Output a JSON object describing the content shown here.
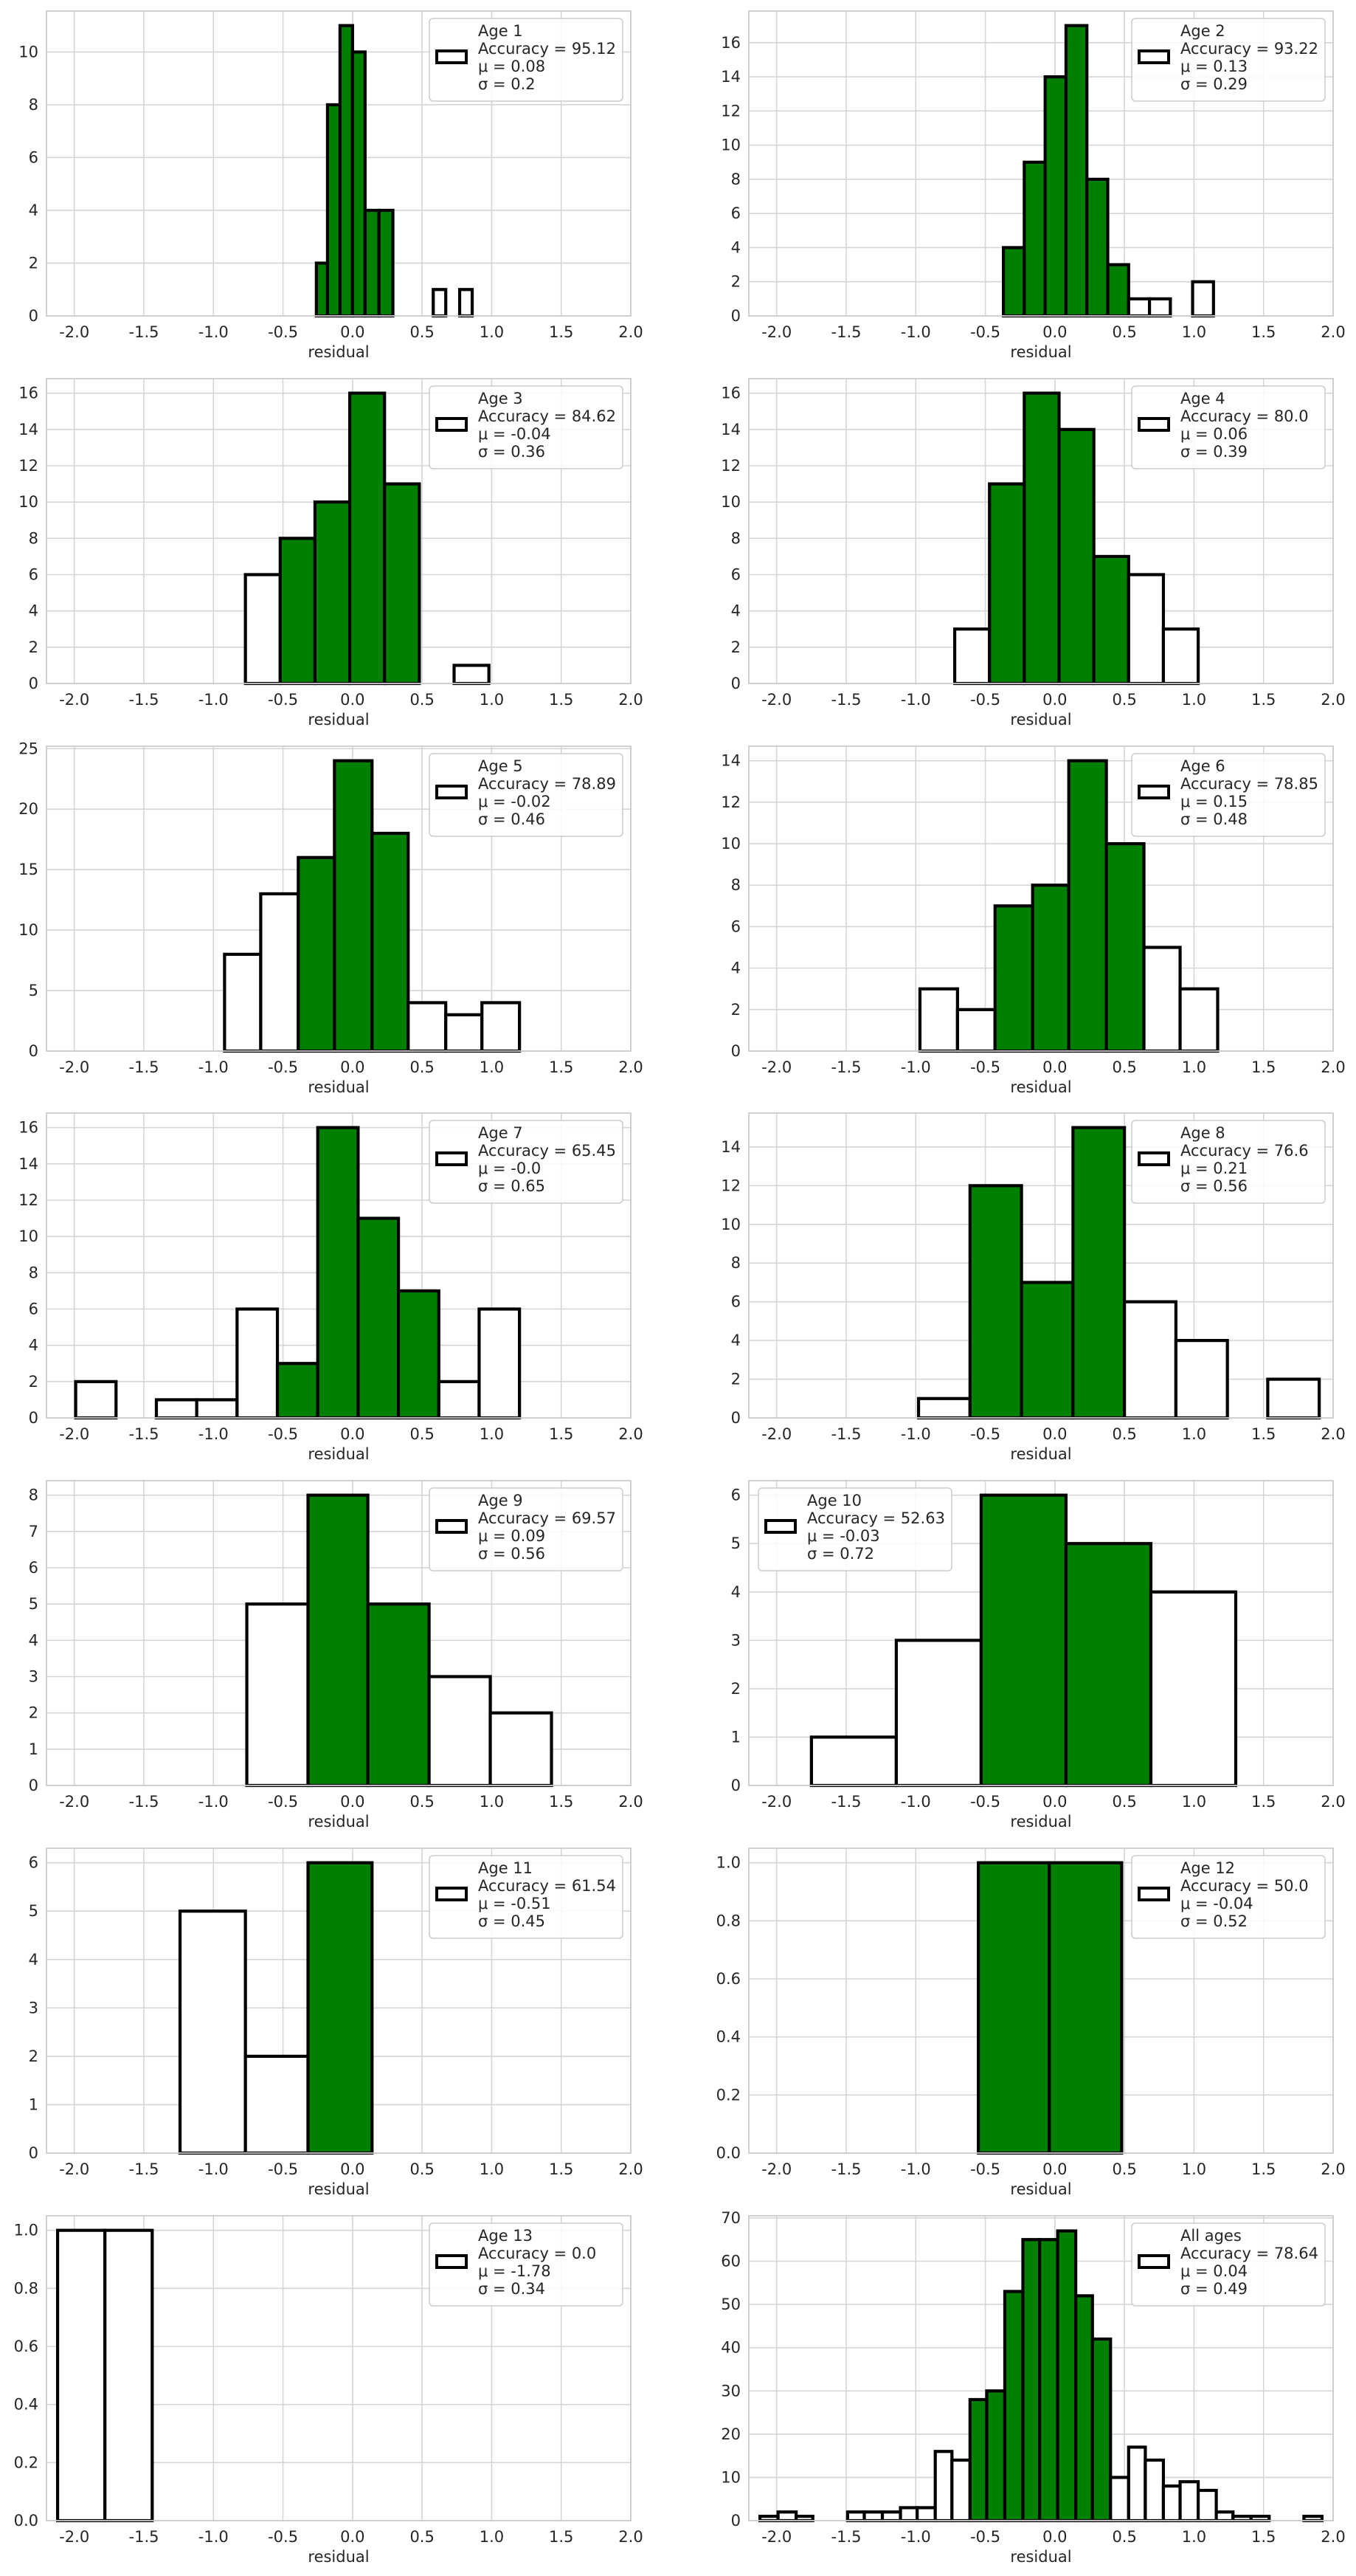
{
  "figure": {
    "xlabel": "residual"
  },
  "colors": {
    "in_range_fill": "#008000",
    "out_range_fill": "#ffffff",
    "edge": "#000000",
    "grid": "#d5d5d5",
    "axes_edge": "#cccccc"
  },
  "chart_data": [
    {
      "type": "bar",
      "legend": [
        "Age 1",
        "Accuracy = 95.12",
        "μ = 0.08",
        "σ = 0.2"
      ],
      "legend_loc": "top-right",
      "xlabel": "residual",
      "xlim": [
        -2.2,
        2.0
      ],
      "ylim": [
        0,
        11.55
      ],
      "yticks": [
        0,
        2,
        4,
        6,
        8,
        10
      ],
      "bins": [
        {
          "x0": -0.26,
          "x1": -0.18,
          "value": 2,
          "in_range": true
        },
        {
          "x0": -0.18,
          "x1": -0.09,
          "value": 8,
          "in_range": true
        },
        {
          "x0": -0.09,
          "x1": 0.0,
          "value": 11,
          "in_range": true
        },
        {
          "x0": 0.0,
          "x1": 0.09,
          "value": 10,
          "in_range": true
        },
        {
          "x0": 0.09,
          "x1": 0.19,
          "value": 4,
          "in_range": true
        },
        {
          "x0": 0.19,
          "x1": 0.29,
          "value": 4,
          "in_range": true
        },
        {
          "x0": 0.58,
          "x1": 0.67,
          "value": 1,
          "in_range": false
        },
        {
          "x0": 0.77,
          "x1": 0.86,
          "value": 1,
          "in_range": false
        }
      ]
    },
    {
      "type": "bar",
      "legend": [
        "Age 2",
        "Accuracy = 93.22",
        "μ = 0.13",
        "σ = 0.29"
      ],
      "legend_loc": "top-right",
      "xlabel": "residual",
      "xlim": [
        -2.2,
        2.0
      ],
      "ylim": [
        0,
        17.85
      ],
      "yticks": [
        0,
        2,
        4,
        6,
        8,
        10,
        12,
        14,
        16
      ],
      "bins": [
        {
          "x0": -0.37,
          "x1": -0.22,
          "value": 4,
          "in_range": true
        },
        {
          "x0": -0.22,
          "x1": -0.07,
          "value": 9,
          "in_range": true
        },
        {
          "x0": -0.07,
          "x1": 0.08,
          "value": 14,
          "in_range": true
        },
        {
          "x0": 0.08,
          "x1": 0.23,
          "value": 17,
          "in_range": true
        },
        {
          "x0": 0.23,
          "x1": 0.38,
          "value": 8,
          "in_range": true
        },
        {
          "x0": 0.38,
          "x1": 0.53,
          "value": 3,
          "in_range": true
        },
        {
          "x0": 0.53,
          "x1": 0.68,
          "value": 1,
          "in_range": false
        },
        {
          "x0": 0.68,
          "x1": 0.83,
          "value": 1,
          "in_range": false
        },
        {
          "x0": 0.99,
          "x1": 1.14,
          "value": 2,
          "in_range": false
        }
      ]
    },
    {
      "type": "bar",
      "legend": [
        "Age 3",
        "Accuracy = 84.62",
        "μ = -0.04",
        "σ = 0.36"
      ],
      "legend_loc": "top-right",
      "xlabel": "residual",
      "xlim": [
        -2.2,
        2.0
      ],
      "ylim": [
        0,
        16.8
      ],
      "yticks": [
        0,
        2,
        4,
        6,
        8,
        10,
        12,
        14,
        16
      ],
      "bins": [
        {
          "x0": -0.77,
          "x1": -0.52,
          "value": 6,
          "in_range": false
        },
        {
          "x0": -0.52,
          "x1": -0.27,
          "value": 8,
          "in_range": true
        },
        {
          "x0": -0.27,
          "x1": -0.02,
          "value": 10,
          "in_range": true
        },
        {
          "x0": -0.02,
          "x1": 0.23,
          "value": 16,
          "in_range": true
        },
        {
          "x0": 0.23,
          "x1": 0.48,
          "value": 11,
          "in_range": true
        },
        {
          "x0": 0.73,
          "x1": 0.98,
          "value": 1,
          "in_range": false
        }
      ]
    },
    {
      "type": "bar",
      "legend": [
        "Age 4",
        "Accuracy = 80.0",
        "μ = 0.06",
        "σ = 0.39"
      ],
      "legend_loc": "top-right",
      "xlabel": "residual",
      "xlim": [
        -2.2,
        2.0
      ],
      "ylim": [
        0,
        16.8
      ],
      "yticks": [
        0,
        2,
        4,
        6,
        8,
        10,
        12,
        14,
        16
      ],
      "bins": [
        {
          "x0": -0.72,
          "x1": -0.47,
          "value": 3,
          "in_range": false
        },
        {
          "x0": -0.47,
          "x1": -0.22,
          "value": 11,
          "in_range": true
        },
        {
          "x0": -0.22,
          "x1": 0.03,
          "value": 16,
          "in_range": true
        },
        {
          "x0": 0.03,
          "x1": 0.28,
          "value": 14,
          "in_range": true
        },
        {
          "x0": 0.28,
          "x1": 0.53,
          "value": 7,
          "in_range": true
        },
        {
          "x0": 0.53,
          "x1": 0.78,
          "value": 6,
          "in_range": false
        },
        {
          "x0": 0.78,
          "x1": 1.03,
          "value": 3,
          "in_range": false
        }
      ]
    },
    {
      "type": "bar",
      "legend": [
        "Age 5",
        "Accuracy = 78.89",
        "μ = -0.02",
        "σ = 0.46"
      ],
      "legend_loc": "top-right",
      "xlabel": "residual",
      "xlim": [
        -2.2,
        2.0
      ],
      "ylim": [
        0,
        25.2
      ],
      "yticks": [
        0,
        5,
        10,
        15,
        20,
        25
      ],
      "bins": [
        {
          "x0": -0.92,
          "x1": -0.66,
          "value": 8,
          "in_range": false
        },
        {
          "x0": -0.66,
          "x1": -0.39,
          "value": 13,
          "in_range": false
        },
        {
          "x0": -0.39,
          "x1": -0.13,
          "value": 16,
          "in_range": true
        },
        {
          "x0": -0.13,
          "x1": 0.14,
          "value": 24,
          "in_range": true
        },
        {
          "x0": 0.14,
          "x1": 0.4,
          "value": 18,
          "in_range": true
        },
        {
          "x0": 0.4,
          "x1": 0.67,
          "value": 4,
          "in_range": false
        },
        {
          "x0": 0.67,
          "x1": 0.93,
          "value": 3,
          "in_range": false
        },
        {
          "x0": 0.93,
          "x1": 1.2,
          "value": 4,
          "in_range": false
        }
      ]
    },
    {
      "type": "bar",
      "legend": [
        "Age 6",
        "Accuracy = 78.85",
        "μ = 0.15",
        "σ = 0.48"
      ],
      "legend_loc": "top-right",
      "xlabel": "residual",
      "xlim": [
        -2.2,
        2.0
      ],
      "ylim": [
        0,
        14.7
      ],
      "yticks": [
        0,
        2,
        4,
        6,
        8,
        10,
        12,
        14
      ],
      "bins": [
        {
          "x0": -0.97,
          "x1": -0.7,
          "value": 3,
          "in_range": false
        },
        {
          "x0": -0.7,
          "x1": -0.43,
          "value": 2,
          "in_range": false
        },
        {
          "x0": -0.43,
          "x1": -0.16,
          "value": 7,
          "in_range": true
        },
        {
          "x0": -0.16,
          "x1": 0.1,
          "value": 8,
          "in_range": true
        },
        {
          "x0": 0.1,
          "x1": 0.37,
          "value": 14,
          "in_range": true
        },
        {
          "x0": 0.37,
          "x1": 0.64,
          "value": 10,
          "in_range": true
        },
        {
          "x0": 0.64,
          "x1": 0.9,
          "value": 5,
          "in_range": false
        },
        {
          "x0": 0.9,
          "x1": 1.17,
          "value": 3,
          "in_range": false
        }
      ]
    },
    {
      "type": "bar",
      "legend": [
        "Age 7",
        "Accuracy = 65.45",
        "μ = -0.0",
        "σ = 0.65"
      ],
      "legend_loc": "top-right",
      "xlabel": "residual",
      "xlim": [
        -2.2,
        2.0
      ],
      "ylim": [
        0,
        16.8
      ],
      "yticks": [
        0,
        2,
        4,
        6,
        8,
        10,
        12,
        14,
        16
      ],
      "bins": [
        {
          "x0": -1.99,
          "x1": -1.7,
          "value": 2,
          "in_range": false
        },
        {
          "x0": -1.41,
          "x1": -1.12,
          "value": 1,
          "in_range": false
        },
        {
          "x0": -1.12,
          "x1": -0.83,
          "value": 1,
          "in_range": false
        },
        {
          "x0": -0.83,
          "x1": -0.54,
          "value": 6,
          "in_range": false
        },
        {
          "x0": -0.54,
          "x1": -0.25,
          "value": 3,
          "in_range": true
        },
        {
          "x0": -0.25,
          "x1": 0.04,
          "value": 16,
          "in_range": true
        },
        {
          "x0": 0.04,
          "x1": 0.33,
          "value": 11,
          "in_range": true
        },
        {
          "x0": 0.33,
          "x1": 0.62,
          "value": 7,
          "in_range": true
        },
        {
          "x0": 0.62,
          "x1": 0.91,
          "value": 2,
          "in_range": false
        },
        {
          "x0": 0.91,
          "x1": 1.2,
          "value": 6,
          "in_range": false
        }
      ]
    },
    {
      "type": "bar",
      "legend": [
        "Age 8",
        "Accuracy = 76.6",
        "μ = 0.21",
        "σ = 0.56"
      ],
      "legend_loc": "top-right",
      "xlabel": "residual",
      "xlim": [
        -2.2,
        2.0
      ],
      "ylim": [
        0,
        15.75
      ],
      "yticks": [
        0,
        2,
        4,
        6,
        8,
        10,
        12,
        14
      ],
      "bins": [
        {
          "x0": -0.98,
          "x1": -0.61,
          "value": 1,
          "in_range": false
        },
        {
          "x0": -0.61,
          "x1": -0.24,
          "value": 12,
          "in_range": true
        },
        {
          "x0": -0.24,
          "x1": 0.13,
          "value": 7,
          "in_range": true
        },
        {
          "x0": 0.13,
          "x1": 0.5,
          "value": 15,
          "in_range": true
        },
        {
          "x0": 0.5,
          "x1": 0.87,
          "value": 6,
          "in_range": false
        },
        {
          "x0": 0.87,
          "x1": 1.24,
          "value": 4,
          "in_range": false
        },
        {
          "x0": 1.53,
          "x1": 1.9,
          "value": 2,
          "in_range": false
        }
      ]
    },
    {
      "type": "bar",
      "legend": [
        "Age 9",
        "Accuracy = 69.57",
        "μ = 0.09",
        "σ = 0.56"
      ],
      "legend_loc": "top-right",
      "xlabel": "residual",
      "xlim": [
        -2.2,
        2.0
      ],
      "ylim": [
        0,
        8.4
      ],
      "yticks": [
        0,
        1,
        2,
        3,
        4,
        5,
        6,
        7,
        8
      ],
      "bins": [
        {
          "x0": -0.76,
          "x1": -0.32,
          "value": 5,
          "in_range": false
        },
        {
          "x0": -0.32,
          "x1": 0.11,
          "value": 8,
          "in_range": true
        },
        {
          "x0": 0.11,
          "x1": 0.55,
          "value": 5,
          "in_range": true
        },
        {
          "x0": 0.55,
          "x1": 0.99,
          "value": 3,
          "in_range": false
        },
        {
          "x0": 0.99,
          "x1": 1.43,
          "value": 2,
          "in_range": false
        }
      ]
    },
    {
      "type": "bar",
      "legend": [
        "Age 10",
        "Accuracy = 52.63",
        "μ = -0.03",
        "σ = 0.72"
      ],
      "legend_loc": "top-left",
      "xlabel": "residual",
      "xlim": [
        -2.2,
        2.0
      ],
      "ylim": [
        0,
        6.3
      ],
      "yticks": [
        0,
        1,
        2,
        3,
        4,
        5,
        6
      ],
      "bins": [
        {
          "x0": -1.75,
          "x1": -1.14,
          "value": 1,
          "in_range": false
        },
        {
          "x0": -1.14,
          "x1": -0.53,
          "value": 3,
          "in_range": false
        },
        {
          "x0": -0.53,
          "x1": 0.08,
          "value": 6,
          "in_range": true
        },
        {
          "x0": 0.08,
          "x1": 0.69,
          "value": 5,
          "in_range": true
        },
        {
          "x0": 0.69,
          "x1": 1.3,
          "value": 4,
          "in_range": false
        }
      ]
    },
    {
      "type": "bar",
      "legend": [
        "Age 11",
        "Accuracy = 61.54",
        "μ = -0.51",
        "σ = 0.45"
      ],
      "legend_loc": "top-right",
      "xlabel": "residual",
      "xlim": [
        -2.2,
        2.0
      ],
      "ylim": [
        0,
        6.3
      ],
      "yticks": [
        0,
        1,
        2,
        3,
        4,
        5,
        6
      ],
      "bins": [
        {
          "x0": -1.24,
          "x1": -0.77,
          "value": 5,
          "in_range": false
        },
        {
          "x0": -0.77,
          "x1": -0.32,
          "value": 2,
          "in_range": false
        },
        {
          "x0": -0.32,
          "x1": 0.14,
          "value": 6,
          "in_range": true
        }
      ]
    },
    {
      "type": "bar",
      "legend": [
        "Age 12",
        "Accuracy = 50.0",
        "μ = -0.04",
        "σ = 0.52"
      ],
      "legend_loc": "top-right",
      "xlabel": "residual",
      "xlim": [
        -2.2,
        2.0
      ],
      "ylim": [
        0,
        1.05
      ],
      "yticks": [
        0.0,
        0.2,
        0.4,
        0.6,
        0.8,
        1.0
      ],
      "ytick_decimals": 1,
      "bins": [
        {
          "x0": -0.55,
          "x1": -0.04,
          "value": 1,
          "in_range": true
        },
        {
          "x0": -0.04,
          "x1": 0.48,
          "value": 1,
          "in_range": true
        }
      ]
    },
    {
      "type": "bar",
      "legend": [
        "Age 13",
        "Accuracy = 0.0",
        "μ = -1.78",
        "σ = 0.34"
      ],
      "legend_loc": "top-right",
      "xlabel": "residual",
      "xlim": [
        -2.2,
        2.0
      ],
      "ylim": [
        0,
        1.05
      ],
      "yticks": [
        0.0,
        0.2,
        0.4,
        0.6,
        0.8,
        1.0
      ],
      "ytick_decimals": 1,
      "bins": [
        {
          "x0": -2.12,
          "x1": -1.78,
          "value": 1,
          "in_range": false
        },
        {
          "x0": -1.78,
          "x1": -1.44,
          "value": 1,
          "in_range": false
        }
      ]
    },
    {
      "type": "bar",
      "legend": [
        "All ages",
        "Accuracy = 78.64",
        "μ = 0.04",
        "σ = 0.49"
      ],
      "legend_loc": "top-right",
      "xlabel": "residual",
      "xlim": [
        -2.2,
        2.0
      ],
      "ylim": [
        0,
        70.5
      ],
      "yticks": [
        0,
        10,
        20,
        30,
        40,
        50,
        60,
        70
      ],
      "bins": [
        {
          "x0": -2.12,
          "x1": -1.99,
          "value": 1,
          "in_range": false
        },
        {
          "x0": -1.99,
          "x1": -1.86,
          "value": 2,
          "in_range": false
        },
        {
          "x0": -1.86,
          "x1": -1.74,
          "value": 1,
          "in_range": false
        },
        {
          "x0": -1.49,
          "x1": -1.37,
          "value": 2,
          "in_range": false
        },
        {
          "x0": -1.37,
          "x1": -1.24,
          "value": 2,
          "in_range": false
        },
        {
          "x0": -1.24,
          "x1": -1.11,
          "value": 2,
          "in_range": false
        },
        {
          "x0": -1.11,
          "x1": -0.99,
          "value": 3,
          "in_range": false
        },
        {
          "x0": -0.99,
          "x1": -0.86,
          "value": 3,
          "in_range": false
        },
        {
          "x0": -0.86,
          "x1": -0.74,
          "value": 16,
          "in_range": false
        },
        {
          "x0": -0.74,
          "x1": -0.61,
          "value": 14,
          "in_range": false
        },
        {
          "x0": -0.61,
          "x1": -0.49,
          "value": 28,
          "in_range": true
        },
        {
          "x0": -0.49,
          "x1": -0.36,
          "value": 30,
          "in_range": true
        },
        {
          "x0": -0.36,
          "x1": -0.23,
          "value": 53,
          "in_range": true
        },
        {
          "x0": -0.23,
          "x1": -0.11,
          "value": 65,
          "in_range": true
        },
        {
          "x0": -0.11,
          "x1": 0.02,
          "value": 65,
          "in_range": true
        },
        {
          "x0": 0.02,
          "x1": 0.15,
          "value": 67,
          "in_range": true
        },
        {
          "x0": 0.15,
          "x1": 0.27,
          "value": 52,
          "in_range": true
        },
        {
          "x0": 0.27,
          "x1": 0.4,
          "value": 42,
          "in_range": true
        },
        {
          "x0": 0.4,
          "x1": 0.53,
          "value": 10,
          "in_range": false
        },
        {
          "x0": 0.53,
          "x1": 0.65,
          "value": 17,
          "in_range": false
        },
        {
          "x0": 0.65,
          "x1": 0.78,
          "value": 14,
          "in_range": false
        },
        {
          "x0": 0.78,
          "x1": 0.9,
          "value": 8,
          "in_range": false
        },
        {
          "x0": 0.9,
          "x1": 1.03,
          "value": 9,
          "in_range": false
        },
        {
          "x0": 1.03,
          "x1": 1.16,
          "value": 7,
          "in_range": false
        },
        {
          "x0": 1.16,
          "x1": 1.28,
          "value": 2,
          "in_range": false
        },
        {
          "x0": 1.28,
          "x1": 1.41,
          "value": 1,
          "in_range": false
        },
        {
          "x0": 1.41,
          "x1": 1.54,
          "value": 1,
          "in_range": false
        },
        {
          "x0": 1.79,
          "x1": 1.92,
          "value": 1,
          "in_range": false
        }
      ]
    }
  ]
}
